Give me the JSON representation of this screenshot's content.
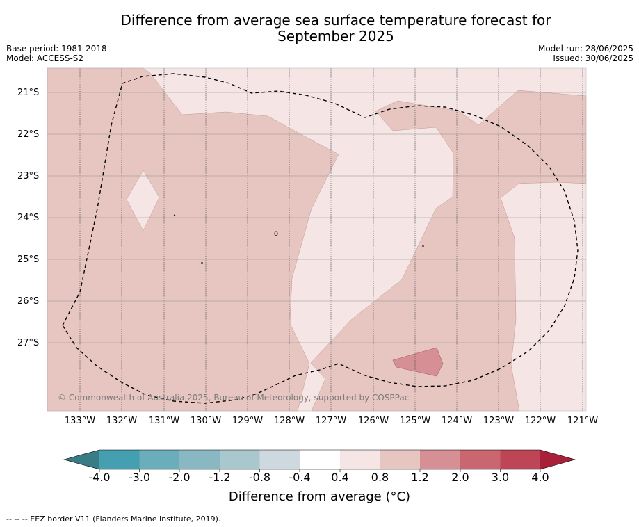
{
  "title_line1": "Difference from average sea surface temperature forecast for",
  "title_line2": "September 2025",
  "meta": {
    "base_period": "Base period: 1981-2018",
    "model": "Model: ACCESS-S2",
    "model_run": "Model run: 28/06/2025",
    "issued": "Issued: 30/06/2025"
  },
  "map": {
    "lat_labels": [
      "21°S",
      "22°S",
      "23°S",
      "24°S",
      "25°S",
      "26°S",
      "27°S"
    ],
    "lon_labels": [
      "133°W",
      "132°W",
      "131°W",
      "130°W",
      "129°W",
      "128°W",
      "127°W",
      "126°W",
      "125°W",
      "124°W",
      "123°W",
      "122°W",
      "121°W"
    ],
    "legend_line_label": "EEZ border",
    "copyright": "© Commonwealth of Australia 2025, Bureau of Meteorology, supported by COSPPac"
  },
  "colorbar": {
    "labels": [
      "-4.0",
      "-3.0",
      "-2.0",
      "-1.2",
      "-0.8",
      "-0.4",
      "0.4",
      "0.8",
      "1.2",
      "2.0",
      "3.0",
      "4.0"
    ],
    "colors": [
      "#3a7c86",
      "#449fb1",
      "#6aaebb",
      "#89b8c2",
      "#a8c8cd",
      "#cdd9de",
      "#ffffff",
      "#f5e6e5",
      "#e7c6c1",
      "#d68f95",
      "#c9666f",
      "#bd4556",
      "#a8203a"
    ],
    "title": "Difference from average (°C)"
  },
  "footnote": "--  --  -- EEZ border V11 (Flanders Marine Institute, 2019)."
}
